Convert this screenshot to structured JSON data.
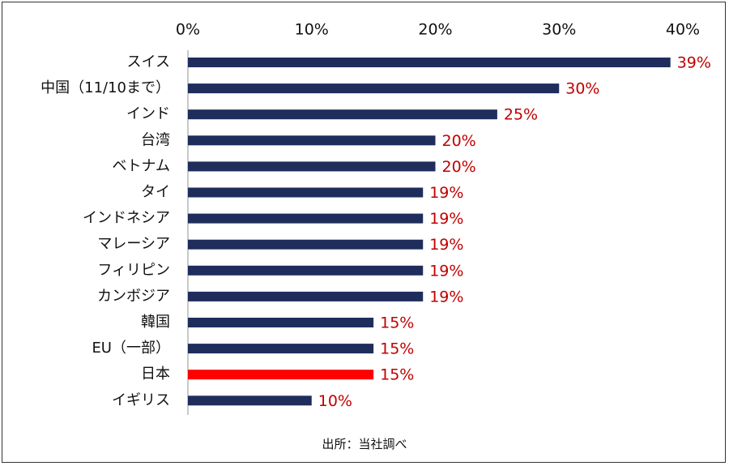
{
  "chart_data": {
    "type": "bar",
    "orientation": "horizontal",
    "categories": [
      "スイス",
      "中国（11/10まで）",
      "インド",
      "台湾",
      "ベトナム",
      "タイ",
      "インドネシア",
      "マレーシア",
      "フィリピン",
      "カンボジア",
      "韓国",
      "EU（一部）",
      "日本",
      "イギリス"
    ],
    "values": [
      39,
      30,
      25,
      20,
      20,
      19,
      19,
      19,
      19,
      19,
      15,
      15,
      15,
      10
    ],
    "value_labels": [
      "39%",
      "30%",
      "25%",
      "20%",
      "20%",
      "19%",
      "19%",
      "19%",
      "19%",
      "19%",
      "15%",
      "15%",
      "15%",
      "10%"
    ],
    "highlight_category": "日本",
    "xlim": [
      0,
      40
    ],
    "x_ticks": [
      0,
      10,
      20,
      30,
      40
    ],
    "x_tick_labels": [
      "0%",
      "10%",
      "20%",
      "30%",
      "40%"
    ],
    "x_axis_position": "top",
    "grid": false,
    "colors": {
      "bar": "#1f2d5c",
      "highlight_bar": "#ff0000",
      "value_label": "#c00000",
      "axis": "#c8c8c8"
    }
  },
  "source_note": "出所：当社調べ"
}
